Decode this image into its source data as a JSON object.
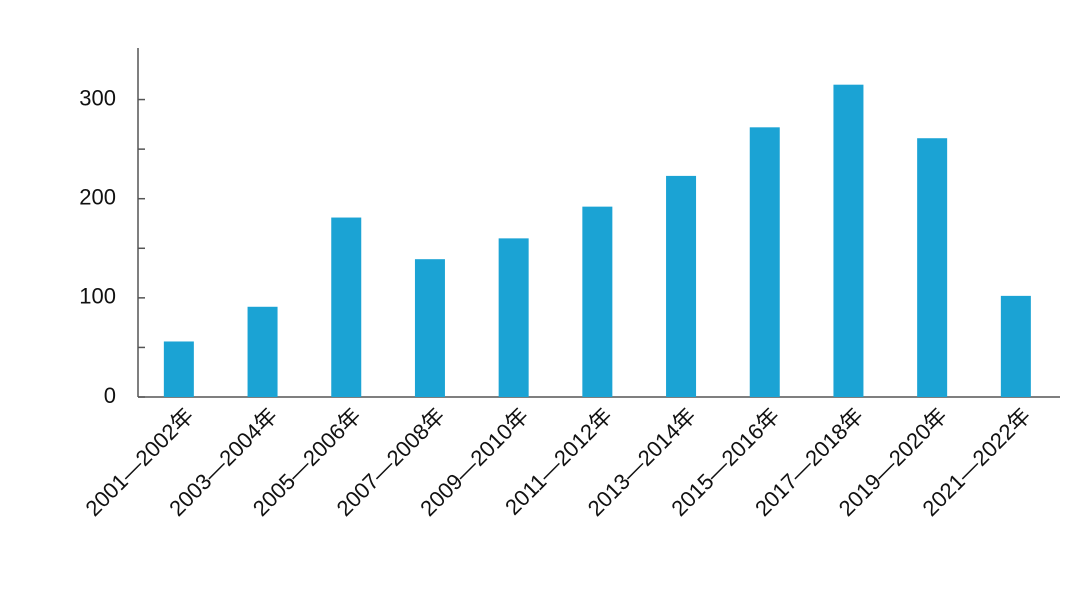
{
  "chart_data": {
    "type": "bar",
    "categories": [
      "2001—2002年",
      "2003—2004年",
      "2005—2006年",
      "2007—2008年",
      "2009—2010年",
      "2011—2012年",
      "2013—2014年",
      "2015—2016年",
      "2017—2018年",
      "2019—2020年",
      "2021—2022年"
    ],
    "values": [
      56,
      91,
      181,
      139,
      160,
      192,
      223,
      272,
      315,
      261,
      102
    ],
    "color": "#1ba3d4",
    "ylim": [
      0,
      352
    ],
    "yticks": [
      0,
      100,
      200,
      300
    ],
    "minor_yticks": [
      50,
      150,
      250
    ],
    "grid": false
  }
}
